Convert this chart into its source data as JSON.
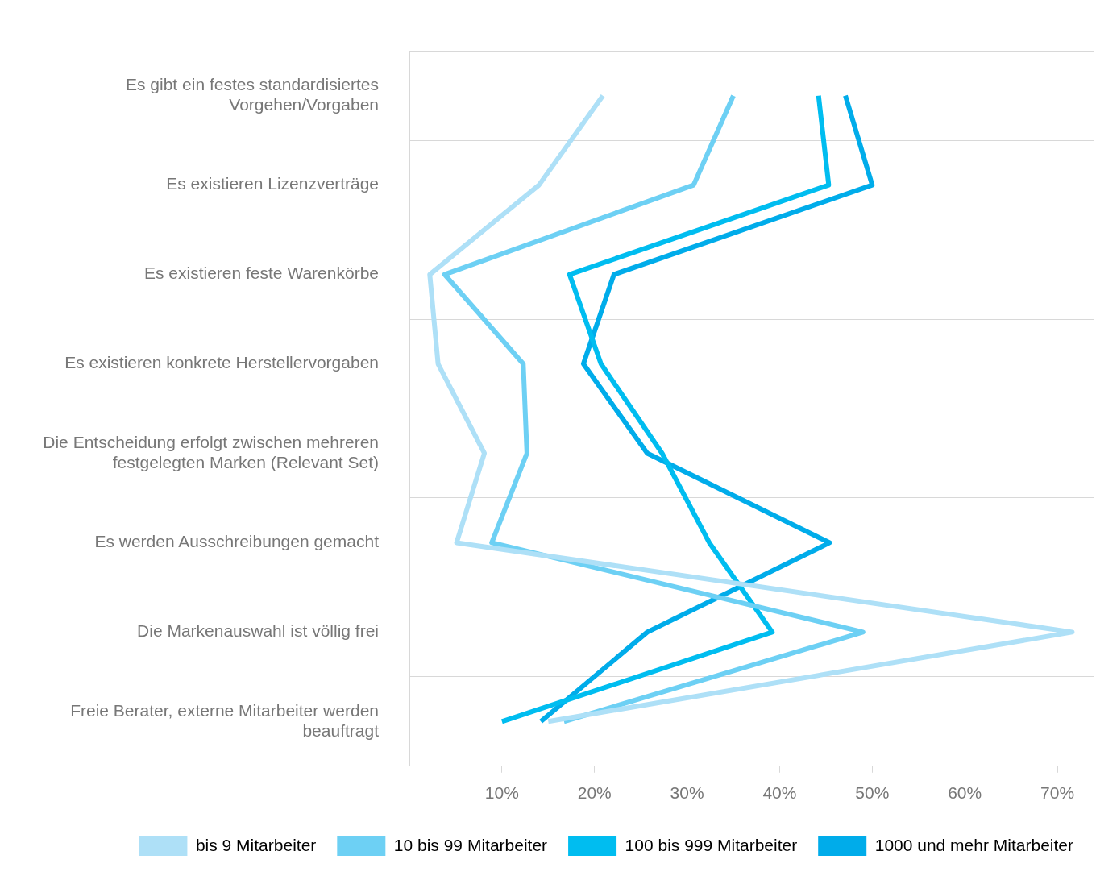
{
  "chart_data": {
    "type": "line",
    "orientation": "horizontal",
    "categories": [
      "Es gibt ein festes standardisiertes Vorgehen/Vorgaben",
      "Es existieren Lizenzverträge",
      "Es existieren feste Warenkörbe",
      "Es existieren konkrete Herstellervorgaben",
      "Die Entscheidung erfolgt zwischen mehreren festgelegten Marken (Relevant Set)",
      "Es werden Ausschreibungen gemacht",
      "Die Markenauswahl ist völlig frei",
      "Freie Berater, externe Mitarbeiter werden beauftragt"
    ],
    "series": [
      {
        "name": "bis 9 Mitarbeiter",
        "color": "#aee0f7",
        "values": [
          20.9,
          14.0,
          2.2,
          3.1,
          8.1,
          5.1,
          71.6,
          15.0
        ]
      },
      {
        "name": "10 bis 99 Mitarbeiter",
        "color": "#6dd0f4",
        "values": [
          35.0,
          30.7,
          3.8,
          12.3,
          12.7,
          8.9,
          49.0,
          16.7
        ]
      },
      {
        "name": "100 bis 999 Mitarbeiter",
        "color": "#00bdf0",
        "values": [
          44.2,
          45.3,
          17.3,
          20.7,
          27.3,
          32.4,
          39.2,
          10.0
        ]
      },
      {
        "name": "1000 und mehr Mitarbeiter",
        "color": "#00acea",
        "values": [
          47.1,
          50.0,
          22.1,
          18.8,
          25.7,
          45.4,
          25.7,
          14.2
        ]
      }
    ],
    "xlim": [
      0,
      74
    ],
    "xticks": [
      {
        "value": 10,
        "label": "10%"
      },
      {
        "value": 20,
        "label": "20%"
      },
      {
        "value": 30,
        "label": "30%"
      },
      {
        "value": 40,
        "label": "40%"
      },
      {
        "value": 50,
        "label": "50%"
      },
      {
        "value": 60,
        "label": "60%"
      },
      {
        "value": 70,
        "label": "70%"
      }
    ],
    "grid": "y",
    "legend": "bottom",
    "marker": "none",
    "line_style": "solid"
  }
}
